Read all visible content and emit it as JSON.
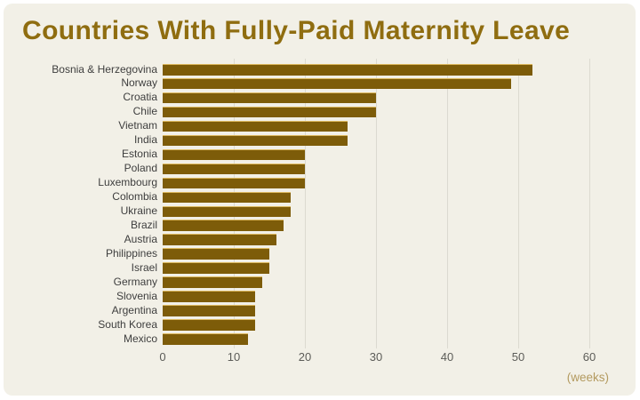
{
  "title": "Countries With Fully-Paid Maternity Leave",
  "axis": {
    "tick_labels": [
      "0",
      "10",
      "20",
      "30",
      "40",
      "50",
      "60"
    ],
    "unit_label": "(weeks)"
  },
  "colors": {
    "page_background": "#ffffff",
    "card_background": "#f2f0e7",
    "bar": "#7d5c09",
    "bar_top_highlight": "#dcb85e",
    "title": "#8f6d10",
    "category_label": "#3e3e3e",
    "tick_label": "#5c5c58",
    "unit_label": "#b39a5f",
    "gridline": "#dcdad0"
  },
  "chart_data": {
    "type": "bar",
    "orientation": "horizontal",
    "title": "Countries With Fully-Paid Maternity Leave",
    "categories": [
      "Bosnia & Herzegovina",
      "Norway",
      "Croatia",
      "Chile",
      "Vietnam",
      "India",
      "Estonia",
      "Poland",
      "Luxembourg",
      "Colombia",
      "Ukraine",
      "Brazil",
      "Austria",
      "Philippines",
      "Israel",
      "Germany",
      "Slovenia",
      "Argentina",
      "South Korea",
      "Mexico"
    ],
    "values": [
      52,
      49,
      30,
      30,
      26,
      26,
      20,
      20,
      20,
      18,
      18,
      17,
      16,
      15,
      15,
      14,
      13,
      13,
      13,
      12
    ],
    "xlabel": "(weeks)",
    "xlim": [
      0,
      65
    ],
    "xticks": [
      0,
      10,
      20,
      30,
      40,
      50,
      60
    ],
    "grid": "vertical-only",
    "legend": "none",
    "bar_color": "#7d5c09",
    "background": "#f2f0e7"
  }
}
